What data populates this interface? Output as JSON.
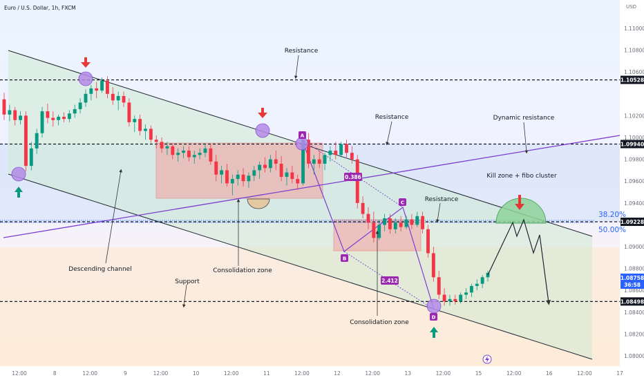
{
  "chart": {
    "title": "Euro / U.S. Dollar, 1h, FXCM",
    "currency": "USD"
  },
  "chart_data": {
    "type": "candlestick",
    "symbol": "Euro / U.S. Dollar",
    "timeframe": "1h",
    "source": "FXCM",
    "ylim": [
      1.08,
      1.112
    ],
    "y_ticks": [
      "1.11000",
      "1.10800",
      "1.10600",
      "1.10200",
      "1.10000",
      "1.09800",
      "1.09600",
      "1.09400",
      "1.09000",
      "1.08800",
      "1.08600",
      "1.08400",
      "1.08200",
      "1.08000"
    ],
    "x_ticks": [
      "12:00",
      "8",
      "12:00",
      "9",
      "12:00",
      "10",
      "12:00",
      "11",
      "12:00",
      "12",
      "12:00",
      "13",
      "12:00",
      "15",
      "12:00",
      "16",
      "12:00",
      "17"
    ],
    "price_levels": [
      {
        "label": "1.10528",
        "value": 1.10528
      },
      {
        "label": "1.09940",
        "value": 1.0994
      },
      {
        "label": "1.09228",
        "value": 1.09228
      },
      {
        "label": "1.08498",
        "value": 1.08498
      }
    ],
    "current_price": {
      "value": "1.08758",
      "countdown": "36:58"
    },
    "fib_levels": [
      {
        "label": "38.20%",
        "value": 1.0925
      },
      {
        "label": "50.00%",
        "value": 1.0915
      }
    ],
    "harmonic_points": [
      "A",
      "B",
      "C",
      "D"
    ],
    "ratios": [
      "0.386",
      "2.412"
    ],
    "annotations": [
      "Resistance",
      "Resistance",
      "Resistance",
      "Dynamic resistance",
      "Kill zone + fibo cluster",
      "Descending channel",
      "Consolidation zone",
      "Consolidation zone",
      "Support"
    ],
    "candles": [
      [
        1.1035,
        1.1041,
        1.1016,
        1.1021
      ],
      [
        1.1021,
        1.103,
        1.1015,
        1.1025
      ],
      [
        1.1025,
        1.1028,
        1.1011,
        1.1016
      ],
      [
        1.1016,
        1.1024,
        1.1012,
        1.102
      ],
      [
        1.102,
        1.1024,
        1.0969,
        1.0974
      ],
      [
        1.0974,
        1.0996,
        1.097,
        1.099
      ],
      [
        1.099,
        1.1008,
        1.0985,
        1.1004
      ],
      [
        1.1004,
        1.1028,
        1.1,
        1.1024
      ],
      [
        1.1024,
        1.1031,
        1.1013,
        1.1018
      ],
      [
        1.1018,
        1.1024,
        1.101,
        1.1016
      ],
      [
        1.1016,
        1.1021,
        1.1011,
        1.1019
      ],
      [
        1.1019,
        1.1023,
        1.1014,
        1.1017
      ],
      [
        1.1017,
        1.1025,
        1.1014,
        1.1022
      ],
      [
        1.1022,
        1.103,
        1.1018,
        1.1026
      ],
      [
        1.1026,
        1.1036,
        1.1022,
        1.1032
      ],
      [
        1.1032,
        1.1044,
        1.1028,
        1.104
      ],
      [
        1.104,
        1.1048,
        1.1034,
        1.1045
      ],
      [
        1.1045,
        1.1051,
        1.1036,
        1.1043
      ],
      [
        1.1043,
        1.1055,
        1.1041,
        1.1052
      ],
      [
        1.1052,
        1.1056,
        1.1036,
        1.104
      ],
      [
        1.104,
        1.1046,
        1.103,
        1.1034
      ],
      [
        1.1034,
        1.1042,
        1.1025,
        1.1038
      ],
      [
        1.1038,
        1.1042,
        1.1028,
        1.1032
      ],
      [
        1.1032,
        1.1036,
        1.101,
        1.1014
      ],
      [
        1.1014,
        1.102,
        1.1005,
        1.1017
      ],
      [
        1.1017,
        1.1021,
        1.1002,
        1.1006
      ],
      [
        1.1006,
        1.1012,
        1.0998,
        1.1008
      ],
      [
        1.1008,
        1.1011,
        1.0995,
        1.0998
      ],
      [
        1.0998,
        1.1002,
        1.099,
        1.0996
      ],
      [
        1.0996,
        1.1,
        1.0986,
        1.099
      ],
      [
        1.099,
        1.0996,
        1.0984,
        1.0992
      ],
      [
        1.0992,
        1.0995,
        1.098,
        1.0984
      ],
      [
        1.0984,
        1.099,
        1.0978,
        1.0986
      ],
      [
        1.0986,
        1.0992,
        1.0981,
        1.0988
      ],
      [
        1.0988,
        1.0992,
        1.0978,
        1.0982
      ],
      [
        1.0982,
        1.0988,
        1.0976,
        1.0984
      ],
      [
        1.0984,
        1.099,
        1.098,
        1.0986
      ],
      [
        1.0986,
        1.0994,
        1.0982,
        1.099
      ],
      [
        1.099,
        1.0994,
        1.0975,
        1.0978
      ],
      [
        1.0978,
        1.0984,
        1.096,
        1.0966
      ],
      [
        1.0966,
        1.0974,
        1.0958,
        1.097
      ],
      [
        1.097,
        1.0976,
        1.0955,
        1.0958
      ],
      [
        1.0958,
        1.0966,
        1.0947,
        1.0962
      ],
      [
        1.0962,
        1.097,
        1.0956,
        1.0966
      ],
      [
        1.0966,
        1.0972,
        1.0955,
        1.096
      ],
      [
        1.096,
        1.0968,
        1.0954,
        1.0965
      ],
      [
        1.0965,
        1.0974,
        1.096,
        1.097
      ],
      [
        1.097,
        1.0978,
        1.0962,
        1.0975
      ],
      [
        1.0975,
        1.0982,
        1.0968,
        1.0972
      ],
      [
        1.0972,
        1.0984,
        1.0968,
        1.098
      ],
      [
        1.098,
        1.0988,
        1.097,
        1.0976
      ],
      [
        1.0976,
        1.0983,
        1.096,
        1.0964
      ],
      [
        1.0964,
        1.0972,
        1.0956,
        1.0968
      ],
      [
        1.0968,
        1.0974,
        1.0958,
        1.0962
      ],
      [
        1.0962,
        1.0966,
        1.0952,
        1.0958
      ],
      [
        1.0958,
        1.1002,
        1.0956,
        1.0998
      ],
      [
        1.0998,
        1.1004,
        1.0972,
        1.0976
      ],
      [
        1.0976,
        1.0984,
        1.0966,
        1.098
      ],
      [
        1.098,
        1.0988,
        1.0972,
        1.0976
      ],
      [
        1.0976,
        1.0986,
        1.097,
        1.0984
      ],
      [
        1.0984,
        1.0992,
        1.0978,
        1.0988
      ],
      [
        1.0988,
        1.0996,
        1.098,
        1.0984
      ],
      [
        1.0984,
        1.0996,
        1.0982,
        1.0994
      ],
      [
        1.0994,
        1.0998,
        1.0982,
        1.0986
      ],
      [
        1.0986,
        1.0992,
        1.0976,
        1.098
      ],
      [
        1.098,
        1.0984,
        1.0935,
        1.094
      ],
      [
        1.094,
        1.0946,
        1.0926,
        1.093
      ],
      [
        1.093,
        1.0936,
        1.0916,
        1.0922
      ],
      [
        1.0922,
        1.0932,
        1.0904,
        1.0908
      ],
      [
        1.0908,
        1.0924,
        1.0906,
        1.092
      ],
      [
        1.092,
        1.093,
        1.0914,
        1.0926
      ],
      [
        1.0926,
        1.093,
        1.0912,
        1.0916
      ],
      [
        1.0916,
        1.0926,
        1.0912,
        1.0922
      ],
      [
        1.0922,
        1.0928,
        1.0914,
        1.0918
      ],
      [
        1.0918,
        1.0928,
        1.0916,
        1.0925
      ],
      [
        1.0925,
        1.093,
        1.0916,
        1.092
      ],
      [
        1.092,
        1.0932,
        1.0918,
        1.0928
      ],
      [
        1.0928,
        1.0932,
        1.0912,
        1.0916
      ],
      [
        1.0916,
        1.092,
        1.089,
        1.0894
      ],
      [
        1.0894,
        1.09,
        1.0868,
        1.0872
      ],
      [
        1.0872,
        1.0878,
        1.0852,
        1.0856
      ],
      [
        1.0856,
        1.0862,
        1.0846,
        1.085
      ],
      [
        1.085,
        1.0856,
        1.0846,
        1.0852
      ],
      [
        1.0852,
        1.0856,
        1.0847,
        1.085
      ],
      [
        1.085,
        1.0858,
        1.0848,
        1.0856
      ],
      [
        1.0856,
        1.0862,
        1.0852,
        1.0858
      ],
      [
        1.0858,
        1.0866,
        1.0854,
        1.0864
      ],
      [
        1.0864,
        1.087,
        1.086,
        1.0866
      ],
      [
        1.0866,
        1.0874,
        1.0862,
        1.0872
      ],
      [
        1.0872,
        1.0878,
        1.0868,
        1.0876
      ]
    ]
  }
}
